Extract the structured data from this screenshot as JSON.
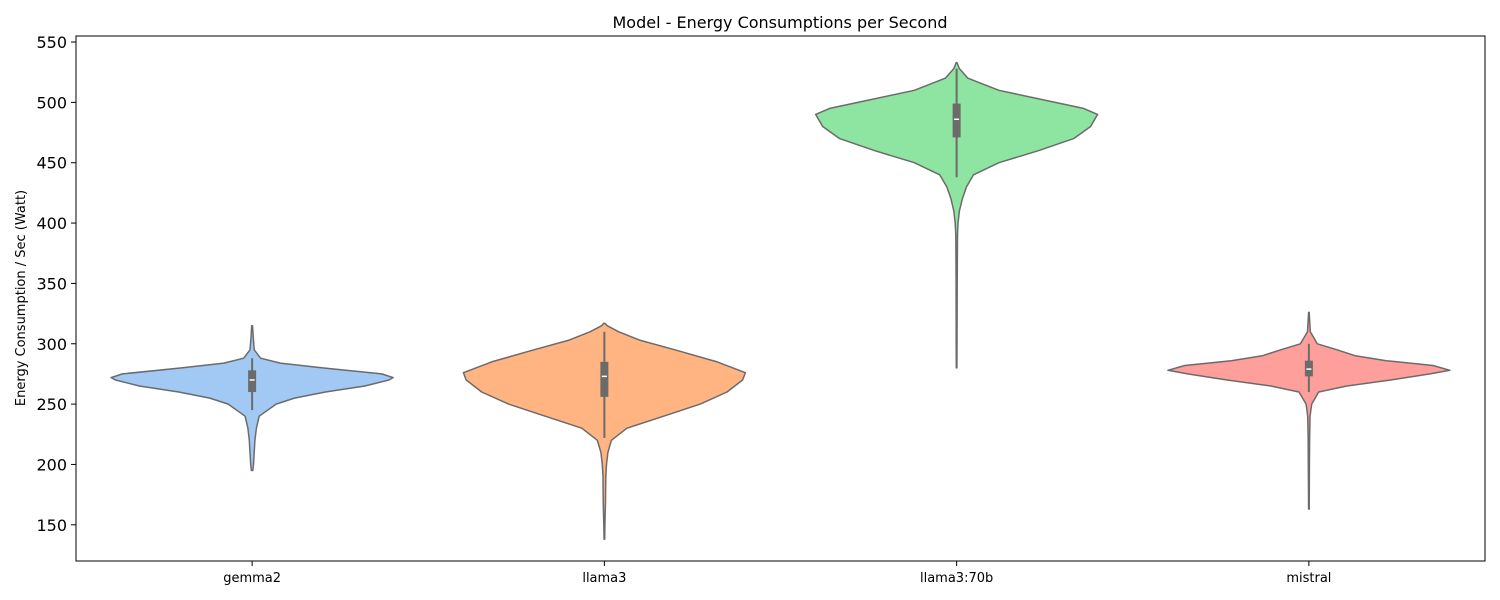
{
  "chart_data": {
    "type": "violin",
    "title": "Model - Energy Consumptions per Second",
    "xlabel": "",
    "ylabel": "Energy Consumption / Sec (Watt)",
    "ylim": [
      120,
      555
    ],
    "yticks": [
      150,
      200,
      250,
      300,
      350,
      400,
      450,
      500,
      550
    ],
    "grid": false,
    "categories": [
      "gemma2",
      "llama3",
      "llama3:70b",
      "mistral"
    ],
    "colors": [
      "#a1c9f4",
      "#ffb482",
      "#8de5a1",
      "#ff9f9b"
    ],
    "series": [
      {
        "category": "gemma2",
        "min": 195,
        "max": 315,
        "q1": 260,
        "median": 270,
        "q3": 278,
        "whisker_low": 245,
        "whisker_high": 288,
        "density": [
          [
            195,
            0.005
          ],
          [
            200,
            0.01
          ],
          [
            210,
            0.015
          ],
          [
            220,
            0.02
          ],
          [
            230,
            0.03
          ],
          [
            240,
            0.05
          ],
          [
            250,
            0.17
          ],
          [
            255,
            0.3
          ],
          [
            260,
            0.52
          ],
          [
            265,
            0.8
          ],
          [
            270,
            0.97
          ],
          [
            272,
            1.0
          ],
          [
            275,
            0.92
          ],
          [
            280,
            0.5
          ],
          [
            284,
            0.2
          ],
          [
            288,
            0.06
          ],
          [
            295,
            0.015
          ],
          [
            305,
            0.008
          ],
          [
            315,
            0.003
          ]
        ]
      },
      {
        "category": "llama3",
        "min": 138,
        "max": 317,
        "q1": 256,
        "median": 273,
        "q3": 285,
        "whisker_low": 222,
        "whisker_high": 310,
        "density": [
          [
            138,
            0.002
          ],
          [
            150,
            0.004
          ],
          [
            170,
            0.008
          ],
          [
            190,
            0.01
          ],
          [
            200,
            0.015
          ],
          [
            210,
            0.025
          ],
          [
            220,
            0.05
          ],
          [
            230,
            0.16
          ],
          [
            240,
            0.42
          ],
          [
            250,
            0.68
          ],
          [
            260,
            0.87
          ],
          [
            270,
            0.98
          ],
          [
            276,
            1.0
          ],
          [
            285,
            0.8
          ],
          [
            295,
            0.5
          ],
          [
            303,
            0.25
          ],
          [
            310,
            0.1
          ],
          [
            315,
            0.02
          ],
          [
            317,
            0.003
          ]
        ]
      },
      {
        "category": "llama3:70b",
        "min": 280,
        "max": 533,
        "q1": 471,
        "median": 486,
        "q3": 499,
        "whisker_low": 438,
        "whisker_high": 528,
        "density": [
          [
            280,
            0.002
          ],
          [
            300,
            0.003
          ],
          [
            350,
            0.004
          ],
          [
            390,
            0.006
          ],
          [
            400,
            0.01
          ],
          [
            410,
            0.02
          ],
          [
            420,
            0.04
          ],
          [
            430,
            0.07
          ],
          [
            440,
            0.12
          ],
          [
            450,
            0.3
          ],
          [
            460,
            0.58
          ],
          [
            470,
            0.83
          ],
          [
            480,
            0.95
          ],
          [
            490,
            1.0
          ],
          [
            495,
            0.9
          ],
          [
            500,
            0.7
          ],
          [
            510,
            0.3
          ],
          [
            520,
            0.08
          ],
          [
            528,
            0.02
          ],
          [
            533,
            0.003
          ]
        ]
      },
      {
        "category": "mistral",
        "min": 163,
        "max": 326,
        "q1": 273,
        "median": 279,
        "q3": 286,
        "whisker_low": 260,
        "whisker_high": 300,
        "density": [
          [
            163,
            0.002
          ],
          [
            180,
            0.003
          ],
          [
            200,
            0.004
          ],
          [
            220,
            0.005
          ],
          [
            240,
            0.008
          ],
          [
            250,
            0.02
          ],
          [
            260,
            0.07
          ],
          [
            265,
            0.27
          ],
          [
            270,
            0.58
          ],
          [
            275,
            0.86
          ],
          [
            278,
            1.0
          ],
          [
            282,
            0.88
          ],
          [
            286,
            0.55
          ],
          [
            290,
            0.33
          ],
          [
            295,
            0.2
          ],
          [
            300,
            0.06
          ],
          [
            310,
            0.01
          ],
          [
            320,
            0.005
          ],
          [
            326,
            0.002
          ]
        ]
      }
    ]
  }
}
